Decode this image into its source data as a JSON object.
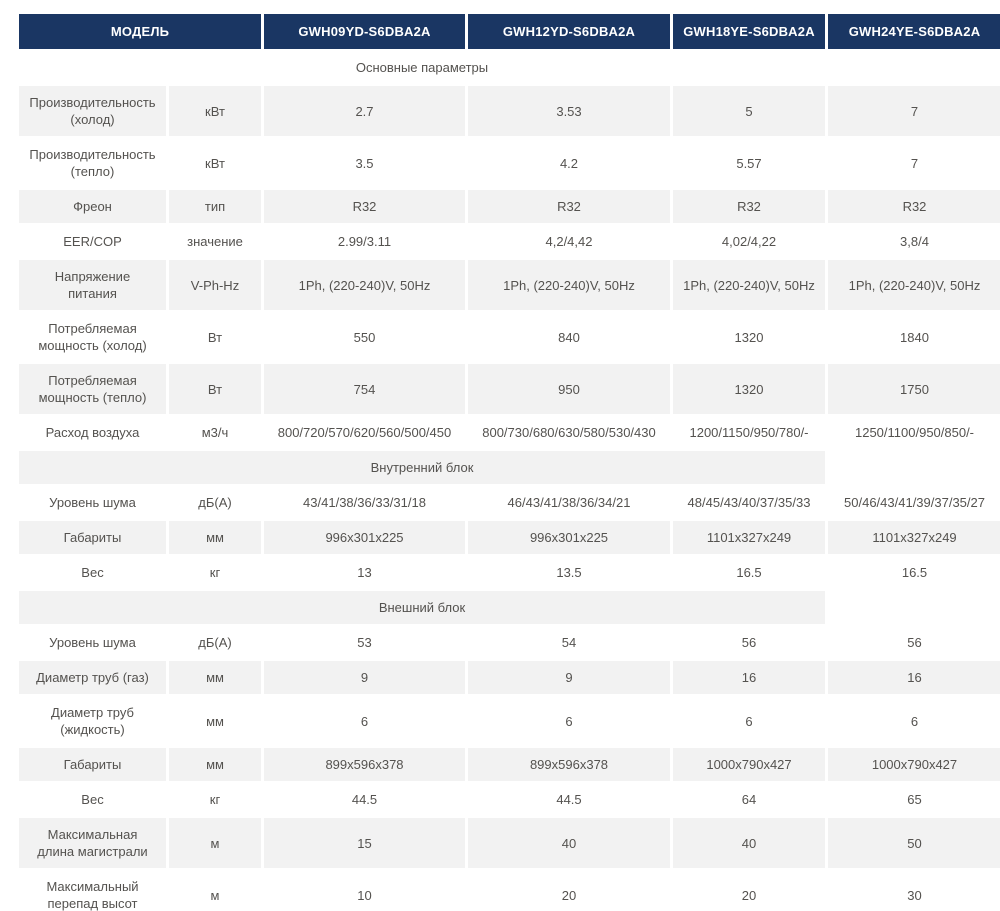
{
  "colors": {
    "header_bg": "#1a3663",
    "header_fg": "#ffffff",
    "row_alt_bg": "#f2f2f2",
    "text": "#54524f"
  },
  "table": {
    "header": {
      "model_label": "МОДЕЛЬ",
      "models": [
        "GWH09YD-S6DBA2A",
        "GWH12YD-S6DBA2A",
        "GWH18YE-S6DBA2A",
        "GWH24YE-S6DBA2A"
      ]
    },
    "rows": [
      {
        "kind": "section",
        "label": "Основные параметры"
      },
      {
        "kind": "data",
        "param": "Производительность (холод)",
        "unit": "кВт",
        "values": [
          "2.7",
          "3.53",
          "5",
          "7"
        ]
      },
      {
        "kind": "data",
        "param": "Производительность (тепло)",
        "unit": "кВт",
        "values": [
          "3.5",
          "4.2",
          "5.57",
          "7"
        ]
      },
      {
        "kind": "data",
        "param": "Фреон",
        "unit": "тип",
        "values": [
          "R32",
          "R32",
          "R32",
          "R32"
        ]
      },
      {
        "kind": "data",
        "param": "EER/COP",
        "unit": "значение",
        "values": [
          "2.99/3.11",
          "4,2/4,42",
          "4,02/4,22",
          "3,8/4"
        ]
      },
      {
        "kind": "data",
        "param": "Напряжение питания",
        "unit": "V-Ph-Hz",
        "values": [
          "1Ph, (220-240)V, 50Hz",
          "1Ph, (220-240)V, 50Hz",
          "1Ph, (220-240)V, 50Hz",
          "1Ph, (220-240)V, 50Hz"
        ]
      },
      {
        "kind": "data",
        "param": "Потребляемая мощность (холод)",
        "unit": "Вт",
        "values": [
          "550",
          "840",
          "1320",
          "1840"
        ]
      },
      {
        "kind": "data",
        "param": "Потребляемая мощность (тепло)",
        "unit": "Вт",
        "values": [
          "754",
          "950",
          "1320",
          "1750"
        ]
      },
      {
        "kind": "data",
        "param": "Расход воздуха",
        "unit": "м3/ч",
        "values": [
          "800/720/570/620/560/500/450",
          "800/730/680/630/580/530/430",
          "1200/1150/950/780/-",
          "1250/1100/950/850/-"
        ]
      },
      {
        "kind": "section",
        "label": "Внутренний блок"
      },
      {
        "kind": "data",
        "param": "Уровень шума",
        "unit": "дБ(А)",
        "values": [
          "43/41/38/36/33/31/18",
          "46/43/41/38/36/34/21",
          "48/45/43/40/37/35/33",
          "50/46/43/41/39/37/35/27"
        ]
      },
      {
        "kind": "data",
        "param": "Габариты",
        "unit": "мм",
        "values": [
          "996x301x225",
          "996x301x225",
          "1101x327x249",
          "1101x327x249"
        ]
      },
      {
        "kind": "data",
        "param": "Вес",
        "unit": "кг",
        "values": [
          "13",
          "13.5",
          "16.5",
          "16.5"
        ]
      },
      {
        "kind": "section",
        "label": "Внешний блок"
      },
      {
        "kind": "data",
        "param": "Уровень шума",
        "unit": "дБ(А)",
        "values": [
          "53",
          "54",
          "56",
          "56"
        ]
      },
      {
        "kind": "data",
        "param": "Диаметр труб (газ)",
        "unit": "мм",
        "values": [
          "9",
          "9",
          "16",
          "16"
        ]
      },
      {
        "kind": "data",
        "param": "Диаметр труб (жидкость)",
        "unit": "мм",
        "values": [
          "6",
          "6",
          "6",
          "6"
        ]
      },
      {
        "kind": "data",
        "param": "Габариты",
        "unit": "мм",
        "values": [
          "899x596x378",
          "899x596x378",
          "1000x790x427",
          "1000x790x427"
        ]
      },
      {
        "kind": "data",
        "param": "Вес",
        "unit": "кг",
        "values": [
          "44.5",
          "44.5",
          "64",
          "65"
        ]
      },
      {
        "kind": "data",
        "param": "Максимальная длина магистрали",
        "unit": "м",
        "values": [
          "15",
          "40",
          "40",
          "50"
        ]
      },
      {
        "kind": "data",
        "param": "Максимальный перепад высот",
        "unit": "м",
        "values": [
          "10",
          "20",
          "20",
          "30"
        ]
      }
    ]
  }
}
